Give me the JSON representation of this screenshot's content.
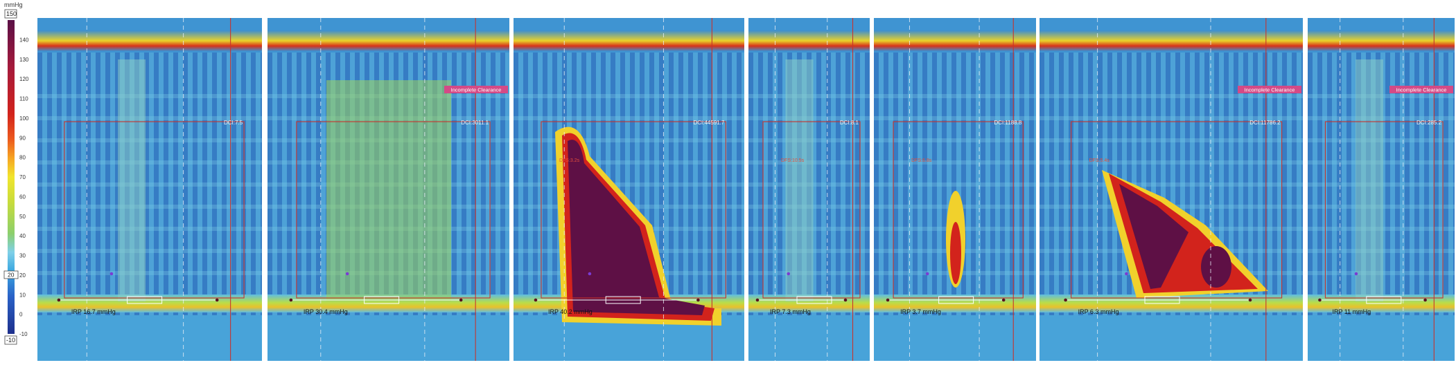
{
  "colorbar": {
    "unit": "mmHg",
    "max_label": "150",
    "min_label": "-10",
    "marker_label": "20",
    "ticks": [
      "140",
      "130",
      "120",
      "110",
      "100",
      "90",
      "80",
      "70",
      "60",
      "50",
      "40",
      "30",
      "20",
      "10",
      "0",
      "-10"
    ],
    "range": [
      -10,
      150
    ]
  },
  "chart_data": {
    "type": "heatmap",
    "title": "",
    "value_unit": "mmHg",
    "color_range": [
      -10,
      150
    ],
    "panels": [
      {
        "dci": "DCI:7.5",
        "irp": "IRP 16.7 mmHg",
        "badge": "",
        "dl": "",
        "intensity": "low"
      },
      {
        "dci": "DCI:3011.1",
        "irp": "IRP 30.4 mmHg",
        "badge": "Incomplete Clearance",
        "dl": "",
        "intensity": "low-medium"
      },
      {
        "dci": "DCI:44591.7",
        "irp": "IRP 40.2 mmHg",
        "badge": "",
        "dl": "DFS:3.2s",
        "intensity": "very high"
      },
      {
        "dci": "DCI:8.1",
        "irp": "IRP 7.3 mmHg",
        "badge": "",
        "dl": "DFS:10.5s",
        "intensity": "low"
      },
      {
        "dci": "DCI:1188.8",
        "irp": "IRP 3.7 mmHg",
        "badge": "",
        "dl": "DFS:6.8s",
        "intensity": "medium"
      },
      {
        "dci": "DCI:11786.2",
        "irp": "IRP 6.3 mmHg",
        "badge": "Incomplete Clearance",
        "dl": "DFS:5.4s",
        "intensity": "high"
      },
      {
        "dci": "DCI:285.2",
        "irp": "IRP 11 mmHg",
        "badge": "Incomplete Clearance",
        "dl": "",
        "intensity": "low"
      }
    ]
  }
}
